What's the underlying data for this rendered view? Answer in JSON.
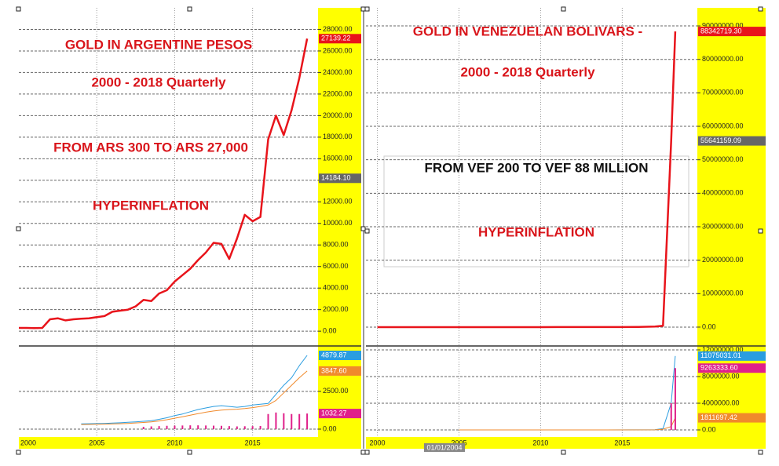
{
  "chart_data": [
    {
      "type": "line",
      "title": "GOLD IN ARGENTINE PESOS",
      "subtitle": "2000 - 2018 Quarterly",
      "annotations": [
        "FROM ARS 300 TO ARS 27,000",
        "HYPERINFLATION"
      ],
      "x": [
        2000,
        2000.5,
        2001,
        2001.5,
        2002,
        2002.5,
        2003,
        2003.5,
        2004,
        2004.5,
        2005,
        2005.5,
        2006,
        2006.5,
        2007,
        2007.5,
        2008,
        2008.5,
        2009,
        2009.5,
        2010,
        2010.5,
        2011,
        2011.5,
        2012,
        2012.5,
        2013,
        2013.5,
        2014,
        2014.5,
        2015,
        2015.5,
        2016,
        2016.5,
        2017,
        2017.5,
        2018,
        2018.5
      ],
      "series": [
        {
          "color": "#e8141b",
          "values": [
            300,
            300,
            290,
            300,
            1100,
            1200,
            1000,
            1100,
            1150,
            1200,
            1300,
            1400,
            1800,
            1900,
            2000,
            2300,
            2900,
            2800,
            3500,
            3800,
            4600,
            5200,
            5800,
            6600,
            7300,
            8200,
            8100,
            6700,
            8600,
            10800,
            10200,
            10600,
            17800,
            20000,
            18200,
            20500,
            23500,
            27139.22
          ]
        }
      ],
      "xlim": [
        2000,
        2019.2
      ],
      "ylim": [
        -1300,
        30000
      ],
      "yticks": [
        {
          "value": 0,
          "label": "0.00"
        },
        {
          "value": 2000,
          "label": "2000.00"
        },
        {
          "value": 4000,
          "label": "4000.00"
        },
        {
          "value": 6000,
          "label": "6000.00"
        },
        {
          "value": 8000,
          "label": "8000.00"
        },
        {
          "value": 10000,
          "label": "10000.00"
        },
        {
          "value": 12000,
          "label": "12000.00"
        },
        {
          "value": 14000,
          "label": "14000.00"
        },
        {
          "value": 16000,
          "label": "16000.00"
        },
        {
          "value": 18000,
          "label": "18000.00"
        },
        {
          "value": 20000,
          "label": "20000.00"
        },
        {
          "value": 22000,
          "label": "22000.00"
        },
        {
          "value": 24000,
          "label": "24000.00"
        },
        {
          "value": 26000,
          "label": "26000.00"
        },
        {
          "value": 28000,
          "label": "28000.00"
        }
      ],
      "price_labels": [
        {
          "value": 27139.22,
          "label": "27139.22",
          "color": "#e8141b"
        },
        {
          "value": 14184.1,
          "label": "14184.10",
          "color": "#666666"
        }
      ],
      "grid": true
    },
    {
      "type": "line",
      "x": [
        2004,
        2004.5,
        2005,
        2005.5,
        2006,
        2006.5,
        2007,
        2007.5,
        2008,
        2008.5,
        2009,
        2009.5,
        2010,
        2010.5,
        2011,
        2011.5,
        2012,
        2012.5,
        2013,
        2013.5,
        2014,
        2014.5,
        2015,
        2015.5,
        2016,
        2016.5,
        2017,
        2017.5,
        2018,
        2018.5
      ],
      "series": [
        {
          "color": "#2a9de0",
          "values": [
            350,
            360,
            370,
            380,
            400,
            420,
            450,
            480,
            520,
            560,
            650,
            750,
            900,
            1000,
            1150,
            1300,
            1400,
            1500,
            1550,
            1500,
            1450,
            1500,
            1600,
            1650,
            1700,
            2300,
            2900,
            3400,
            4200,
            4879.87
          ]
        },
        {
          "color": "#f08a2c",
          "values": [
            300,
            310,
            320,
            330,
            340,
            360,
            380,
            410,
            440,
            480,
            540,
            620,
            720,
            820,
            920,
            1020,
            1120,
            1200,
            1260,
            1300,
            1320,
            1360,
            1420,
            1500,
            1600,
            1900,
            2400,
            2900,
            3400,
            3847.6
          ]
        },
        {
          "color": "#e0208a",
          "type": "bar",
          "values": [
            0,
            0,
            0,
            0,
            0,
            0,
            0,
            0,
            150,
            180,
            200,
            220,
            230,
            240,
            250,
            250,
            240,
            230,
            220,
            200,
            180,
            190,
            200,
            210,
            1000,
            1100,
            1050,
            1000,
            1000,
            1032.27
          ]
        }
      ],
      "xlim": [
        2000,
        2019.2
      ],
      "ylim": [
        -520,
        5400
      ],
      "xticks": [
        2000,
        2005,
        2010,
        2015
      ],
      "yticks": [
        {
          "value": 0,
          "label": "0.00"
        },
        {
          "value": 2500,
          "label": "2500.00"
        }
      ],
      "price_labels": [
        {
          "value": 4879.87,
          "label": "4879.87",
          "color": "#2a9de0"
        },
        {
          "value": 3847.6,
          "label": "3847.60",
          "color": "#f08a2c"
        },
        {
          "value": 1032.27,
          "label": "1032.27",
          "color": "#e0208a"
        }
      ],
      "grid": true
    },
    {
      "type": "line",
      "title": "GOLD IN VENEZUELAN BOLIVARS -",
      "subtitle": "2000  - 2018  Quarterly",
      "annotations": [
        "FROM VEF 200 TO VEF 88 MILLION",
        "HYPERINFLATION"
      ],
      "x": [
        2000,
        2001,
        2002,
        2003,
        2004,
        2005,
        2006,
        2007,
        2008,
        2009,
        2010,
        2011,
        2012,
        2013,
        2014,
        2015,
        2016,
        2017,
        2017.5,
        2018,
        2018.25
      ],
      "series": [
        {
          "color": "#e8141b",
          "values": [
            200,
            250,
            400,
            600,
            800,
            900,
            1000,
            1300,
            1700,
            2000,
            2500,
            3500,
            4000,
            6000,
            10000,
            20000,
            60000,
            150000,
            400000,
            55641159.09,
            88342719.3
          ]
        }
      ],
      "xlim": [
        1999.3,
        2019.6
      ],
      "ylim": [
        -5400000,
        95400000
      ],
      "yticks": [
        {
          "value": 0,
          "label": "0.00"
        },
        {
          "value": 10000000,
          "label": "10000000.00"
        },
        {
          "value": 20000000,
          "label": "20000000.00"
        },
        {
          "value": 30000000,
          "label": "30000000.00"
        },
        {
          "value": 40000000,
          "label": "40000000.00"
        },
        {
          "value": 50000000,
          "label": "50000000.00"
        },
        {
          "value": 60000000,
          "label": "60000000.00"
        },
        {
          "value": 70000000,
          "label": "70000000.00"
        },
        {
          "value": 80000000,
          "label": "80000000.00"
        },
        {
          "value": 90000000,
          "label": "90000000.00"
        }
      ],
      "price_labels": [
        {
          "value": 88342719.3,
          "label": "88342719.30",
          "color": "#e8141b"
        },
        {
          "value": 55641159.09,
          "label": "55641159.09",
          "color": "#666666"
        }
      ],
      "grid": true
    },
    {
      "type": "line",
      "x": [
        2005,
        2008,
        2011,
        2014,
        2017,
        2017.5,
        2018,
        2018.25
      ],
      "series": [
        {
          "color": "#2a9de0",
          "values": [
            0,
            0,
            0,
            1000,
            20000,
            200000,
            4000000,
            11075031.01
          ]
        },
        {
          "color": "#f08a2c",
          "values": [
            0,
            0,
            0,
            500,
            10000,
            100000,
            500000,
            1811697.42
          ]
        },
        {
          "color": "#e0208a",
          "type": "bar",
          "values": [
            0,
            0,
            0,
            0,
            0,
            0,
            4000000,
            9263333.6
          ]
        }
      ],
      "xlim": [
        1999.3,
        2019.6
      ],
      "ylim": [
        -1060000,
        12350000
      ],
      "xticks": [
        2000,
        2005,
        2010,
        2015
      ],
      "yticks": [
        {
          "value": 0,
          "label": "0.00"
        },
        {
          "value": 4000000,
          "label": "4000000.00"
        },
        {
          "value": 8000000,
          "label": "8000000.00"
        },
        {
          "value": 12000000,
          "label": "12000000.00"
        }
      ],
      "price_labels": [
        {
          "value": 11075031.01,
          "label": "11075031.01",
          "color": "#2a9de0"
        },
        {
          "value": 9263333.6,
          "label": "9263333.60",
          "color": "#e0208a"
        },
        {
          "value": 1811697.42,
          "label": "1811697.42",
          "color": "#f08a2c"
        }
      ],
      "cursor_label": "01/01/2004",
      "grid": true
    }
  ]
}
